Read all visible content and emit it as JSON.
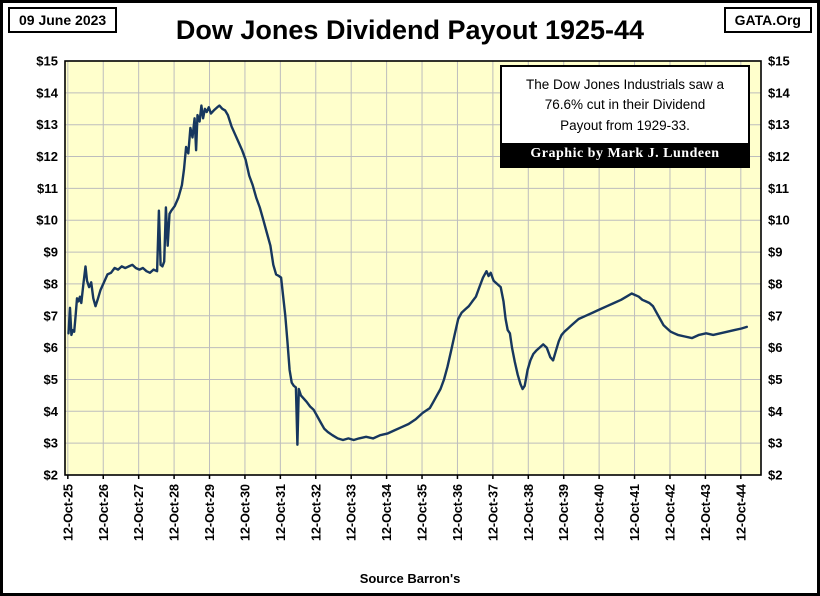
{
  "header": {
    "date_label": "09 June 2023",
    "org_label": "GATA.Org",
    "title": "Dow Jones Dividend Payout 1925-44"
  },
  "annotation": {
    "line1": "The Dow Jones Industrials saw a",
    "line2": "76.6% cut in their Dividend",
    "line3": "Payout from 1929-33.",
    "credit": "Graphic by Mark J. Lundeen"
  },
  "footer": {
    "source": "Source Barron's"
  },
  "chart_data": {
    "type": "line",
    "title": "Dow Jones Dividend Payout 1925-44",
    "xlabel": "",
    "ylabel": "",
    "ylim": [
      2,
      15
    ],
    "xlim": [
      1925.7,
      1945.35
    ],
    "grid": true,
    "colors": {
      "line": "#17375e",
      "plot_bg": "#ffffcc",
      "grid": "#bdbdbd",
      "axis": "#000000"
    },
    "y_ticks": [
      {
        "v": 2,
        "label": "$2"
      },
      {
        "v": 3,
        "label": "$3"
      },
      {
        "v": 4,
        "label": "$4"
      },
      {
        "v": 5,
        "label": "$5"
      },
      {
        "v": 6,
        "label": "$6"
      },
      {
        "v": 7,
        "label": "$7"
      },
      {
        "v": 8,
        "label": "$8"
      },
      {
        "v": 9,
        "label": "$9"
      },
      {
        "v": 10,
        "label": "$10"
      },
      {
        "v": 11,
        "label": "$11"
      },
      {
        "v": 12,
        "label": "$12"
      },
      {
        "v": 13,
        "label": "$13"
      },
      {
        "v": 14,
        "label": "$14"
      },
      {
        "v": 15,
        "label": "$15"
      }
    ],
    "x_ticks": [
      {
        "t": 1925.78,
        "label": "12-Oct-25"
      },
      {
        "t": 1926.78,
        "label": "12-Oct-26"
      },
      {
        "t": 1927.78,
        "label": "12-Oct-27"
      },
      {
        "t": 1928.78,
        "label": "12-Oct-28"
      },
      {
        "t": 1929.78,
        "label": "12-Oct-29"
      },
      {
        "t": 1930.78,
        "label": "12-Oct-30"
      },
      {
        "t": 1931.78,
        "label": "12-Oct-31"
      },
      {
        "t": 1932.78,
        "label": "12-Oct-32"
      },
      {
        "t": 1933.78,
        "label": "12-Oct-33"
      },
      {
        "t": 1934.78,
        "label": "12-Oct-34"
      },
      {
        "t": 1935.78,
        "label": "12-Oct-35"
      },
      {
        "t": 1936.78,
        "label": "12-Oct-36"
      },
      {
        "t": 1937.78,
        "label": "12-Oct-37"
      },
      {
        "t": 1938.78,
        "label": "12-Oct-38"
      },
      {
        "t": 1939.78,
        "label": "12-Oct-39"
      },
      {
        "t": 1940.78,
        "label": "12-Oct-40"
      },
      {
        "t": 1941.78,
        "label": "12-Oct-41"
      },
      {
        "t": 1942.78,
        "label": "12-Oct-42"
      },
      {
        "t": 1943.78,
        "label": "12-Oct-43"
      },
      {
        "t": 1944.78,
        "label": "12-Oct-44"
      }
    ],
    "series": [
      {
        "name": "Dow Jones Dividend Payout",
        "points": [
          [
            1925.8,
            6.45
          ],
          [
            1925.84,
            7.25
          ],
          [
            1925.88,
            6.4
          ],
          [
            1925.92,
            6.55
          ],
          [
            1925.96,
            6.5
          ],
          [
            1926.0,
            7.0
          ],
          [
            1926.04,
            7.55
          ],
          [
            1926.08,
            7.45
          ],
          [
            1926.12,
            7.6
          ],
          [
            1926.16,
            7.4
          ],
          [
            1926.22,
            8.0
          ],
          [
            1926.28,
            8.55
          ],
          [
            1926.32,
            8.1
          ],
          [
            1926.38,
            7.9
          ],
          [
            1926.44,
            8.05
          ],
          [
            1926.5,
            7.55
          ],
          [
            1926.56,
            7.3
          ],
          [
            1926.62,
            7.5
          ],
          [
            1926.7,
            7.8
          ],
          [
            1926.8,
            8.05
          ],
          [
            1926.9,
            8.3
          ],
          [
            1927.0,
            8.35
          ],
          [
            1927.1,
            8.5
          ],
          [
            1927.2,
            8.45
          ],
          [
            1927.3,
            8.55
          ],
          [
            1927.4,
            8.5
          ],
          [
            1927.5,
            8.55
          ],
          [
            1927.6,
            8.6
          ],
          [
            1927.7,
            8.5
          ],
          [
            1927.8,
            8.45
          ],
          [
            1927.9,
            8.5
          ],
          [
            1928.0,
            8.4
          ],
          [
            1928.1,
            8.35
          ],
          [
            1928.2,
            8.45
          ],
          [
            1928.3,
            8.4
          ],
          [
            1928.35,
            10.3
          ],
          [
            1928.4,
            8.6
          ],
          [
            1928.45,
            8.55
          ],
          [
            1928.5,
            8.7
          ],
          [
            1928.55,
            10.4
          ],
          [
            1928.6,
            9.2
          ],
          [
            1928.65,
            10.2
          ],
          [
            1928.7,
            10.3
          ],
          [
            1928.8,
            10.45
          ],
          [
            1928.9,
            10.7
          ],
          [
            1929.0,
            11.1
          ],
          [
            1929.06,
            11.6
          ],
          [
            1929.12,
            12.3
          ],
          [
            1929.18,
            12.1
          ],
          [
            1929.24,
            12.9
          ],
          [
            1929.3,
            12.6
          ],
          [
            1929.36,
            13.2
          ],
          [
            1929.4,
            12.2
          ],
          [
            1929.44,
            13.3
          ],
          [
            1929.5,
            13.1
          ],
          [
            1929.55,
            13.6
          ],
          [
            1929.6,
            13.2
          ],
          [
            1929.65,
            13.5
          ],
          [
            1929.7,
            13.4
          ],
          [
            1929.76,
            13.55
          ],
          [
            1929.82,
            13.35
          ],
          [
            1929.9,
            13.45
          ],
          [
            1930.0,
            13.55
          ],
          [
            1930.06,
            13.6
          ],
          [
            1930.14,
            13.5
          ],
          [
            1930.22,
            13.45
          ],
          [
            1930.3,
            13.3
          ],
          [
            1930.4,
            12.95
          ],
          [
            1930.5,
            12.7
          ],
          [
            1930.6,
            12.45
          ],
          [
            1930.7,
            12.2
          ],
          [
            1930.8,
            11.9
          ],
          [
            1930.9,
            11.4
          ],
          [
            1931.0,
            11.1
          ],
          [
            1931.1,
            10.7
          ],
          [
            1931.2,
            10.4
          ],
          [
            1931.3,
            10.0
          ],
          [
            1931.4,
            9.6
          ],
          [
            1931.5,
            9.2
          ],
          [
            1931.58,
            8.6
          ],
          [
            1931.66,
            8.3
          ],
          [
            1931.74,
            8.25
          ],
          [
            1931.8,
            8.2
          ],
          [
            1931.86,
            7.6
          ],
          [
            1931.92,
            7.0
          ],
          [
            1931.98,
            6.2
          ],
          [
            1932.04,
            5.3
          ],
          [
            1932.1,
            4.9
          ],
          [
            1932.16,
            4.8
          ],
          [
            1932.22,
            4.75
          ],
          [
            1932.26,
            2.95
          ],
          [
            1932.3,
            4.7
          ],
          [
            1932.36,
            4.5
          ],
          [
            1932.44,
            4.4
          ],
          [
            1932.52,
            4.3
          ],
          [
            1932.62,
            4.15
          ],
          [
            1932.72,
            4.05
          ],
          [
            1932.82,
            3.85
          ],
          [
            1932.92,
            3.65
          ],
          [
            1933.02,
            3.45
          ],
          [
            1933.12,
            3.35
          ],
          [
            1933.25,
            3.25
          ],
          [
            1933.4,
            3.15
          ],
          [
            1933.55,
            3.1
          ],
          [
            1933.7,
            3.15
          ],
          [
            1933.85,
            3.1
          ],
          [
            1934.0,
            3.15
          ],
          [
            1934.2,
            3.2
          ],
          [
            1934.4,
            3.15
          ],
          [
            1934.6,
            3.25
          ],
          [
            1934.8,
            3.3
          ],
          [
            1935.0,
            3.4
          ],
          [
            1935.2,
            3.5
          ],
          [
            1935.4,
            3.6
          ],
          [
            1935.6,
            3.75
          ],
          [
            1935.8,
            3.95
          ],
          [
            1936.0,
            4.1
          ],
          [
            1936.1,
            4.3
          ],
          [
            1936.2,
            4.5
          ],
          [
            1936.3,
            4.7
          ],
          [
            1936.4,
            5.0
          ],
          [
            1936.5,
            5.4
          ],
          [
            1936.6,
            5.9
          ],
          [
            1936.7,
            6.4
          ],
          [
            1936.8,
            6.9
          ],
          [
            1936.9,
            7.1
          ],
          [
            1937.0,
            7.2
          ],
          [
            1937.1,
            7.3
          ],
          [
            1937.2,
            7.45
          ],
          [
            1937.3,
            7.6
          ],
          [
            1937.4,
            7.9
          ],
          [
            1937.5,
            8.2
          ],
          [
            1937.6,
            8.4
          ],
          [
            1937.66,
            8.25
          ],
          [
            1937.72,
            8.35
          ],
          [
            1937.8,
            8.1
          ],
          [
            1937.9,
            8.0
          ],
          [
            1938.0,
            7.9
          ],
          [
            1938.08,
            7.45
          ],
          [
            1938.14,
            6.9
          ],
          [
            1938.2,
            6.55
          ],
          [
            1938.26,
            6.45
          ],
          [
            1938.32,
            6.0
          ],
          [
            1938.4,
            5.55
          ],
          [
            1938.48,
            5.15
          ],
          [
            1938.56,
            4.85
          ],
          [
            1938.62,
            4.7
          ],
          [
            1938.68,
            4.8
          ],
          [
            1938.76,
            5.3
          ],
          [
            1938.84,
            5.6
          ],
          [
            1938.92,
            5.8
          ],
          [
            1939.0,
            5.9
          ],
          [
            1939.1,
            6.0
          ],
          [
            1939.2,
            6.1
          ],
          [
            1939.3,
            6.0
          ],
          [
            1939.4,
            5.7
          ],
          [
            1939.48,
            5.6
          ],
          [
            1939.56,
            5.9
          ],
          [
            1939.64,
            6.2
          ],
          [
            1939.72,
            6.4
          ],
          [
            1939.8,
            6.5
          ],
          [
            1939.9,
            6.6
          ],
          [
            1940.0,
            6.7
          ],
          [
            1940.2,
            6.9
          ],
          [
            1940.4,
            7.0
          ],
          [
            1940.6,
            7.1
          ],
          [
            1940.8,
            7.2
          ],
          [
            1941.0,
            7.3
          ],
          [
            1941.2,
            7.4
          ],
          [
            1941.4,
            7.5
          ],
          [
            1941.55,
            7.6
          ],
          [
            1941.7,
            7.7
          ],
          [
            1941.8,
            7.65
          ],
          [
            1941.9,
            7.6
          ],
          [
            1942.0,
            7.5
          ],
          [
            1942.1,
            7.45
          ],
          [
            1942.2,
            7.4
          ],
          [
            1942.3,
            7.3
          ],
          [
            1942.4,
            7.1
          ],
          [
            1942.5,
            6.9
          ],
          [
            1942.6,
            6.7
          ],
          [
            1942.7,
            6.6
          ],
          [
            1942.8,
            6.5
          ],
          [
            1942.9,
            6.45
          ],
          [
            1943.0,
            6.4
          ],
          [
            1943.2,
            6.35
          ],
          [
            1943.4,
            6.3
          ],
          [
            1943.6,
            6.4
          ],
          [
            1943.8,
            6.45
          ],
          [
            1944.0,
            6.4
          ],
          [
            1944.2,
            6.45
          ],
          [
            1944.4,
            6.5
          ],
          [
            1944.6,
            6.55
          ],
          [
            1944.8,
            6.6
          ],
          [
            1944.95,
            6.65
          ]
        ]
      }
    ]
  }
}
